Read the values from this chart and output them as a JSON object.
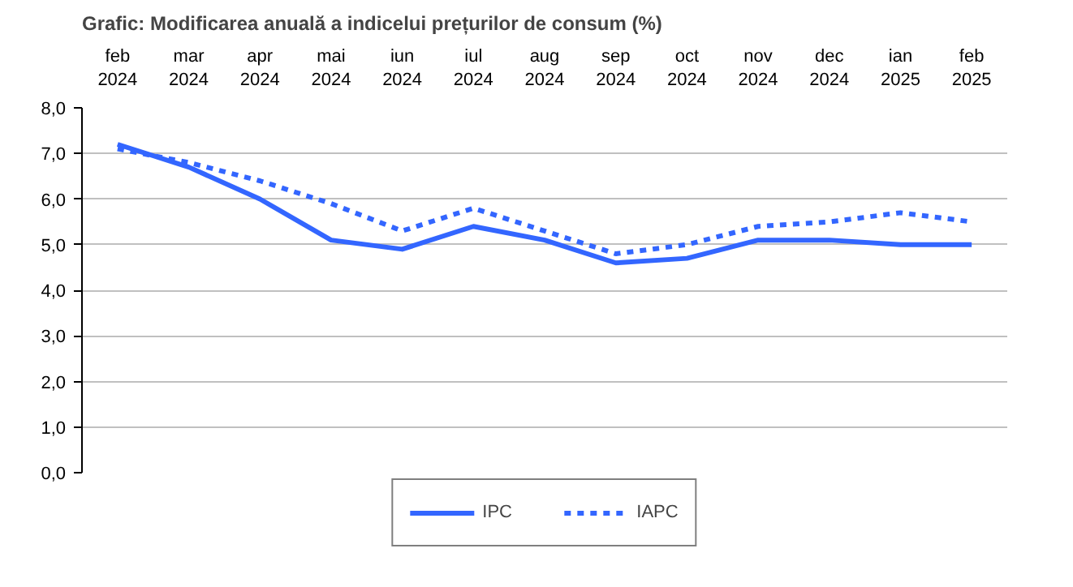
{
  "chart_data": {
    "type": "line",
    "title": "Grafic: Modificarea anuală a indicelui prețurilor de consum (%)",
    "categories": [
      "feb 2024",
      "mar 2024",
      "apr 2024",
      "mai 2024",
      "iun 2024",
      "iul 2024",
      "aug 2024",
      "sep 2024",
      "oct 2024",
      "nov 2024",
      "dec 2024",
      "ian 2025",
      "feb 2025"
    ],
    "series": [
      {
        "name": "IPC",
        "color": "#3366ff",
        "line_style": "solid",
        "values": [
          7.2,
          6.7,
          6.0,
          5.1,
          4.9,
          5.4,
          5.1,
          4.6,
          4.7,
          5.1,
          5.1,
          5.0,
          5.0
        ]
      },
      {
        "name": "IAPC",
        "color": "#3366ff",
        "line_style": "dashed",
        "values": [
          7.1,
          6.8,
          6.4,
          5.9,
          5.3,
          5.8,
          5.3,
          4.8,
          5.0,
          5.4,
          5.5,
          5.7,
          5.5
        ]
      }
    ],
    "ylim": [
      0,
      8
    ],
    "yticks": [
      {
        "value": 0,
        "label": "0,0"
      },
      {
        "value": 1,
        "label": "1,0"
      },
      {
        "value": 2,
        "label": "2,0"
      },
      {
        "value": 3,
        "label": "3,0"
      },
      {
        "value": 4,
        "label": "4,0"
      },
      {
        "value": 5,
        "label": "5,0"
      },
      {
        "value": 6,
        "label": "6,0"
      },
      {
        "value": 7,
        "label": "7,0"
      },
      {
        "value": 8,
        "label": "8,0"
      }
    ],
    "grid": "y",
    "legend": "bottom",
    "marker": "none"
  }
}
